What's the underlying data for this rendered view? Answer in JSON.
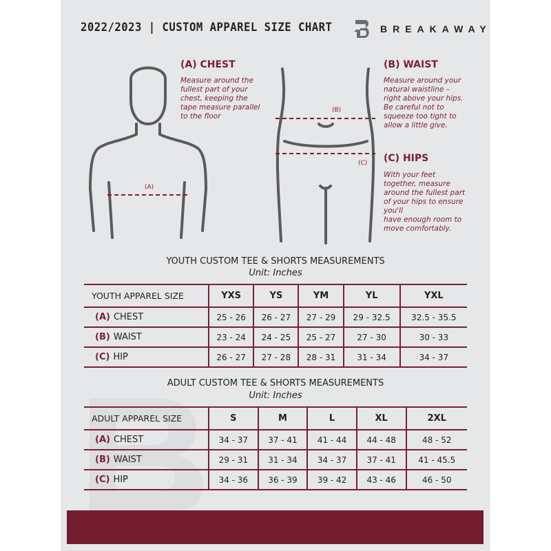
{
  "header": {
    "title": "2022/2023  |  CUSTOM APPAREL SIZE CHART",
    "brand": "BREAKAWAY",
    "logo_icon": "breakaway-b-logo"
  },
  "measures": {
    "chest": {
      "heading": "(A) CHEST",
      "marker": "(A)",
      "text": "Measure around the\nfullest part of your\nchest, keeping the\ntape measure parallel\nto the floor"
    },
    "waist": {
      "heading": "(B) WAIST",
      "marker": "(B)",
      "text": "Measure around your\nnatural waistline –\nright above your hips.\nBe careful not to\nsqueeze too tight to\nallow a little give."
    },
    "hips": {
      "heading": "(C) HIPS",
      "marker": "(C)",
      "text": "With your feet\ntogether, measure\naround the fullest part\nof your hips to ensure\nyou'll\nhave enough room to\nmove comfortably."
    }
  },
  "youth": {
    "title": "YOUTH CUSTOM TEE & SHORTS MEASUREMENTS",
    "unit": "Unit: Inches",
    "header": "YOUTH APPAREL SIZE",
    "sizes": [
      "YXS",
      "YS",
      "YM",
      "YL",
      "YXL"
    ],
    "rows": [
      {
        "letter": "(A)",
        "name": "CHEST",
        "values": [
          "25 - 26",
          "26 - 27",
          "27 - 29",
          "29 - 32.5",
          "32.5 - 35.5"
        ]
      },
      {
        "letter": "(B)",
        "name": "WAIST",
        "values": [
          "23 - 24",
          "24 - 25",
          "25 - 27",
          "27 - 30",
          "30 - 33"
        ]
      },
      {
        "letter": "(C)",
        "name": "HIP",
        "values": [
          "26 - 27",
          "27 - 28",
          "28 - 31",
          "31 - 34",
          "34 - 37"
        ]
      }
    ]
  },
  "adult": {
    "title": "ADULT CUSTOM TEE & SHORTS MEASUREMENTS",
    "unit": "Unit: Inches",
    "header": "ADULT APPAREL SIZE",
    "sizes": [
      "S",
      "M",
      "L",
      "XL",
      "2XL"
    ],
    "rows": [
      {
        "letter": "(A)",
        "name": "CHEST",
        "values": [
          "34 - 37",
          "37 - 41",
          "41 - 44",
          "44 - 48",
          "48 - 52"
        ]
      },
      {
        "letter": "(B)",
        "name": "WAIST",
        "values": [
          "29 - 31",
          "31 - 34",
          "34 - 37",
          "37 - 41",
          "41 - 45.5"
        ]
      },
      {
        "letter": "(C)",
        "name": "HIP",
        "values": [
          "34 - 36",
          "36 - 39",
          "39 - 42",
          "43 - 46",
          "46 - 50"
        ]
      }
    ]
  },
  "colors": {
    "accent": "#7a1f35",
    "band": "#731c30",
    "panel": "#e6e7e8"
  }
}
